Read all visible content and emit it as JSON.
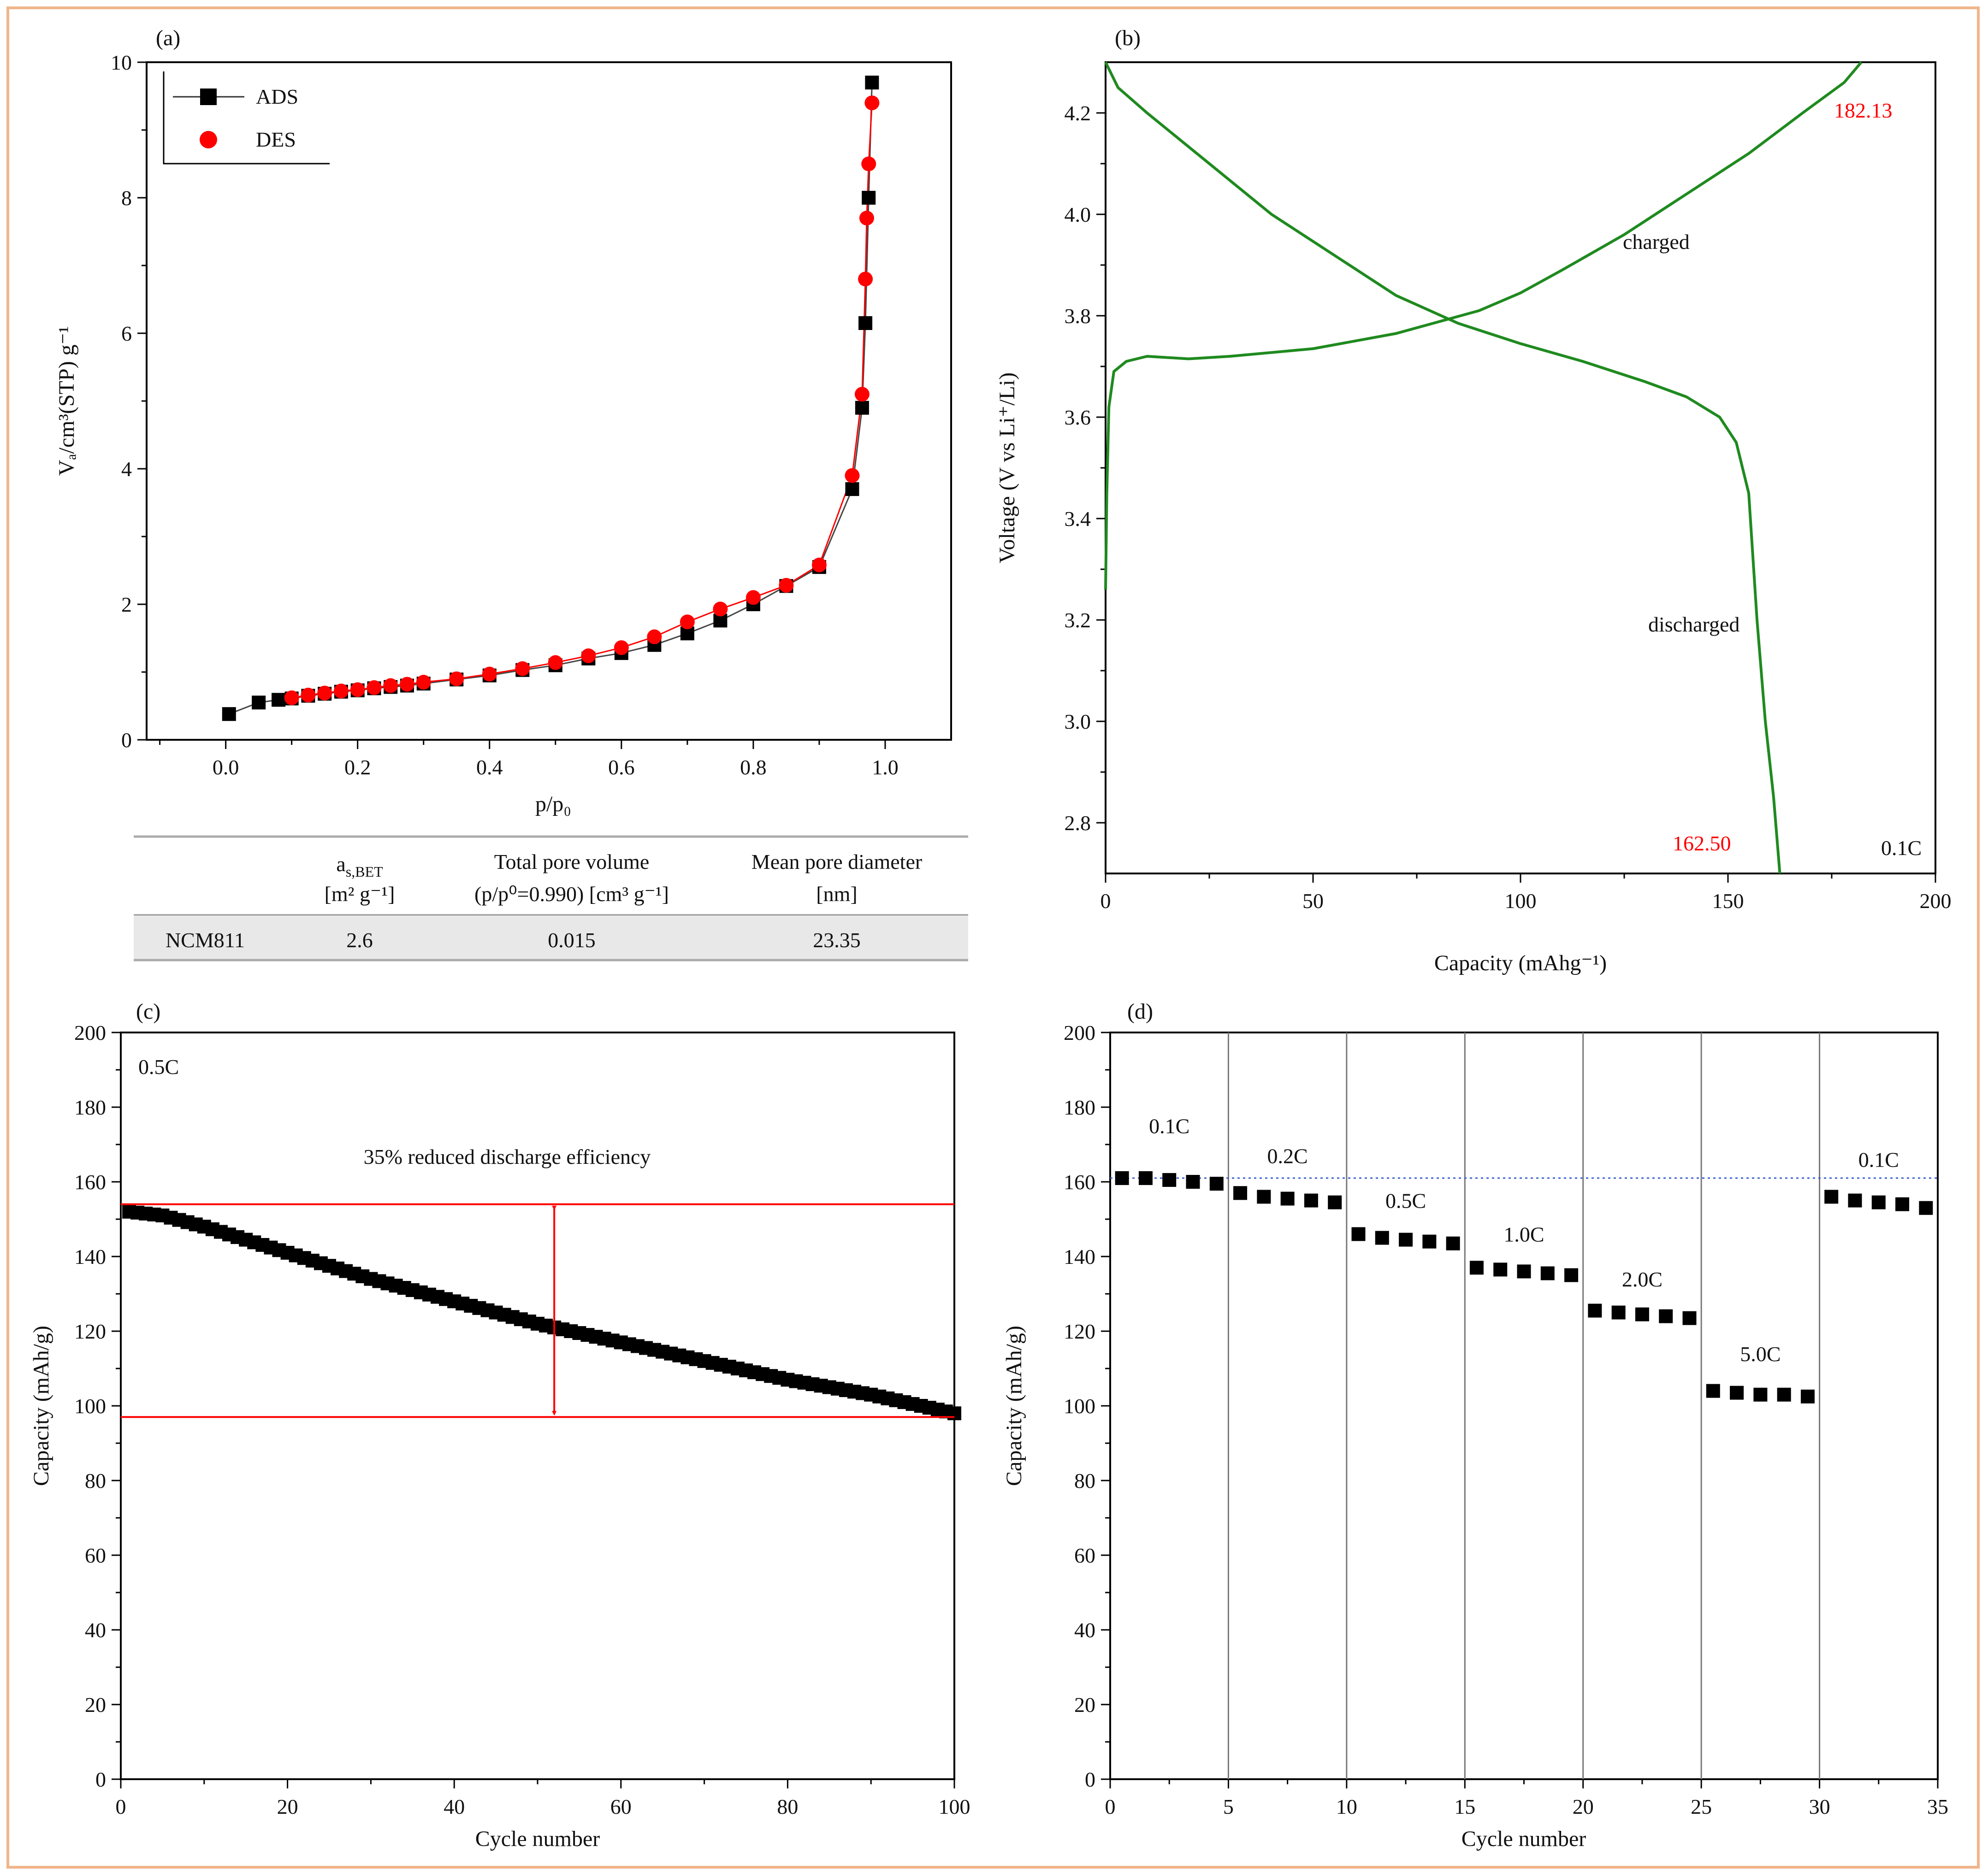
{
  "colors": {
    "black": "#000000",
    "red": "#ff0000",
    "green": "#1f8a1f",
    "gray": "#777777",
    "blue": "#3b5fd0",
    "tableShade": "#e8e8e8",
    "frame": "#f0b58a"
  },
  "chart_data": [
    {
      "panel": "(a)",
      "type": "scatter",
      "xlabel": "p/p₀",
      "ylabel": "Vₐ/cm³(STP) g⁻¹",
      "xlim": [
        -0.12,
        1.1
      ],
      "ylim": [
        0,
        10
      ],
      "xticks": [
        "0.0",
        "0.2",
        "0.4",
        "0.6",
        "0.8",
        "1.0"
      ],
      "yticks": [
        "0",
        "2",
        "4",
        "6",
        "8",
        "10"
      ],
      "legend": [
        "ADS",
        "DES"
      ],
      "series": [
        {
          "name": "ADS",
          "marker": "square",
          "color": "#000000",
          "points": [
            [
              0.005,
              0.38
            ],
            [
              0.05,
              0.55
            ],
            [
              0.08,
              0.59
            ],
            [
              0.1,
              0.61
            ],
            [
              0.125,
              0.65
            ],
            [
              0.15,
              0.68
            ],
            [
              0.175,
              0.71
            ],
            [
              0.2,
              0.73
            ],
            [
              0.225,
              0.76
            ],
            [
              0.25,
              0.78
            ],
            [
              0.275,
              0.8
            ],
            [
              0.3,
              0.83
            ],
            [
              0.35,
              0.89
            ],
            [
              0.4,
              0.95
            ],
            [
              0.45,
              1.03
            ],
            [
              0.5,
              1.1
            ],
            [
              0.55,
              1.2
            ],
            [
              0.6,
              1.28
            ],
            [
              0.65,
              1.4
            ],
            [
              0.7,
              1.57
            ],
            [
              0.75,
              1.76
            ],
            [
              0.8,
              2.0
            ],
            [
              0.85,
              2.27
            ],
            [
              0.9,
              2.55
            ],
            [
              0.95,
              3.7
            ],
            [
              0.965,
              4.9
            ],
            [
              0.97,
              6.15
            ],
            [
              0.975,
              8.0
            ],
            [
              0.98,
              9.7
            ]
          ]
        },
        {
          "name": "DES",
          "marker": "circle",
          "color": "#ff0000",
          "points": [
            [
              0.1,
              0.62
            ],
            [
              0.125,
              0.66
            ],
            [
              0.15,
              0.69
            ],
            [
              0.175,
              0.72
            ],
            [
              0.2,
              0.74
            ],
            [
              0.225,
              0.77
            ],
            [
              0.25,
              0.8
            ],
            [
              0.275,
              0.82
            ],
            [
              0.3,
              0.85
            ],
            [
              0.35,
              0.9
            ],
            [
              0.4,
              0.97
            ],
            [
              0.45,
              1.05
            ],
            [
              0.5,
              1.14
            ],
            [
              0.55,
              1.24
            ],
            [
              0.6,
              1.36
            ],
            [
              0.65,
              1.52
            ],
            [
              0.7,
              1.74
            ],
            [
              0.75,
              1.93
            ],
            [
              0.8,
              2.1
            ],
            [
              0.85,
              2.28
            ],
            [
              0.9,
              2.58
            ],
            [
              0.95,
              3.9
            ],
            [
              0.965,
              5.1
            ],
            [
              0.97,
              6.8
            ],
            [
              0.972,
              7.7
            ],
            [
              0.975,
              8.5
            ],
            [
              0.98,
              9.4
            ]
          ]
        }
      ]
    },
    {
      "panel": "(b)",
      "type": "line",
      "xlabel": "Capacity (mAhg⁻¹)",
      "ylabel": "Voltage (V vs Li⁺/Li)",
      "xlim": [
        0,
        200
      ],
      "ylim": [
        2.7,
        4.3
      ],
      "xticks": [
        "0",
        "50",
        "100",
        "150",
        "200"
      ],
      "yticks": [
        "2.8",
        "3.0",
        "3.2",
        "3.4",
        "3.6",
        "3.8",
        "4.0",
        "4.2"
      ],
      "series": [
        {
          "name": "charged",
          "color": "#1f8a1f",
          "points": [
            [
              0,
              3.26
            ],
            [
              0.3,
              3.45
            ],
            [
              0.8,
              3.62
            ],
            [
              2,
              3.69
            ],
            [
              5,
              3.71
            ],
            [
              10,
              3.72
            ],
            [
              20,
              3.715
            ],
            [
              30,
              3.72
            ],
            [
              50,
              3.735
            ],
            [
              70,
              3.765
            ],
            [
              90,
              3.81
            ],
            [
              100,
              3.845
            ],
            [
              110,
              3.89
            ],
            [
              125,
              3.96
            ],
            [
              140,
              4.04
            ],
            [
              155,
              4.12
            ],
            [
              168,
              4.2
            ],
            [
              178,
              4.26
            ],
            [
              182.13,
              4.3
            ]
          ]
        },
        {
          "name": "discharged",
          "color": "#1f8a1f",
          "points": [
            [
              0,
              4.3
            ],
            [
              3,
              4.25
            ],
            [
              10,
              4.2
            ],
            [
              25,
              4.1
            ],
            [
              40,
              4.0
            ],
            [
              55,
              3.92
            ],
            [
              70,
              3.84
            ],
            [
              85,
              3.785
            ],
            [
              100,
              3.745
            ],
            [
              115,
              3.71
            ],
            [
              130,
              3.67
            ],
            [
              140,
              3.64
            ],
            [
              148,
              3.6
            ],
            [
              152,
              3.55
            ],
            [
              155,
              3.45
            ],
            [
              157,
              3.2
            ],
            [
              159,
              3.0
            ],
            [
              161,
              2.85
            ],
            [
              162.5,
              2.7
            ]
          ]
        }
      ],
      "annotations": {
        "charged_label": "charged",
        "discharged_label": "discharged",
        "charge_cap": "182.13",
        "discharge_cap": "162.50",
        "rate": "0.1C"
      }
    },
    {
      "panel": "(c)",
      "type": "scatter",
      "xlabel": "Cycle number",
      "ylabel": "Capacity (mAh/g)",
      "xlim": [
        0,
        100
      ],
      "ylim": [
        0,
        200
      ],
      "xticks": [
        "0",
        "20",
        "40",
        "60",
        "80",
        "100"
      ],
      "yticks": [
        "0",
        "20",
        "40",
        "60",
        "80",
        "100",
        "120",
        "140",
        "160",
        "180",
        "200"
      ],
      "rate": "0.5C",
      "note": "35% reduced discharge efficiency",
      "hlines": [
        154,
        97
      ],
      "arrow": {
        "x": 52,
        "y1": 153,
        "y2": 98
      },
      "trend": [
        [
          1,
          152
        ],
        [
          5,
          151
        ],
        [
          10,
          148
        ],
        [
          20,
          141
        ],
        [
          30,
          134
        ],
        [
          40,
          128
        ],
        [
          50,
          122
        ],
        [
          60,
          117
        ],
        [
          70,
          112
        ],
        [
          80,
          107
        ],
        [
          90,
          103
        ],
        [
          100,
          98
        ]
      ]
    },
    {
      "panel": "(d)",
      "type": "scatter",
      "xlabel": "Cycle number",
      "ylabel": "Capacity (mAh/g)",
      "xlim": [
        0,
        35
      ],
      "ylim": [
        0,
        200
      ],
      "xticks": [
        "0",
        "5",
        "10",
        "15",
        "20",
        "25",
        "30",
        "35"
      ],
      "yticks": [
        "0",
        "20",
        "40",
        "60",
        "80",
        "100",
        "120",
        "140",
        "160",
        "180",
        "200"
      ],
      "reference_line": 161,
      "dividers": [
        5,
        10,
        15,
        20,
        25,
        30
      ],
      "groups": [
        {
          "label": "0.1C",
          "label_y": 173,
          "x": [
            0.5,
            1.5,
            2.5,
            3.5,
            4.5
          ],
          "values": [
            161,
            161,
            160.5,
            160,
            159.5
          ]
        },
        {
          "label": "0.2C",
          "label_y": 165,
          "x": [
            5.5,
            6.5,
            7.5,
            8.5,
            9.5
          ],
          "values": [
            157,
            156,
            155.5,
            155,
            154.5
          ]
        },
        {
          "label": "0.5C",
          "label_y": 153,
          "x": [
            10.5,
            11.5,
            12.5,
            13.5,
            14.5
          ],
          "values": [
            146,
            145,
            144.5,
            144,
            143.5
          ]
        },
        {
          "label": "1.0C",
          "label_y": 144,
          "x": [
            15.5,
            16.5,
            17.5,
            18.5,
            19.5
          ],
          "values": [
            137,
            136.5,
            136,
            135.5,
            135
          ]
        },
        {
          "label": "2.0C",
          "label_y": 132,
          "x": [
            20.5,
            21.5,
            22.5,
            23.5,
            24.5
          ],
          "values": [
            125.5,
            125,
            124.5,
            124,
            123.5
          ]
        },
        {
          "label": "5.0C",
          "label_y": 112,
          "x": [
            25.5,
            26.5,
            27.5,
            28.5,
            29.5
          ],
          "values": [
            104,
            103.5,
            103,
            103,
            102.5
          ]
        },
        {
          "label": "0.1C",
          "label_y": 164,
          "x": [
            30.5,
            31.5,
            32.5,
            33.5,
            34.5
          ],
          "values": [
            156,
            155,
            154.5,
            154,
            153
          ]
        }
      ]
    }
  ],
  "table": {
    "headers": [
      {
        "main": "a",
        "sub": "s,BET",
        "line2": "[m² g⁻¹]"
      },
      {
        "main": "Total pore volume",
        "line2": "(p/p⁰=0.990) [cm³ g⁻¹]"
      },
      {
        "main": "Mean pore diameter",
        "line2": "[nm]"
      }
    ],
    "row": {
      "name": "NCM811",
      "bet": "2.6",
      "volume": "0.015",
      "diameter": "23.35"
    }
  }
}
